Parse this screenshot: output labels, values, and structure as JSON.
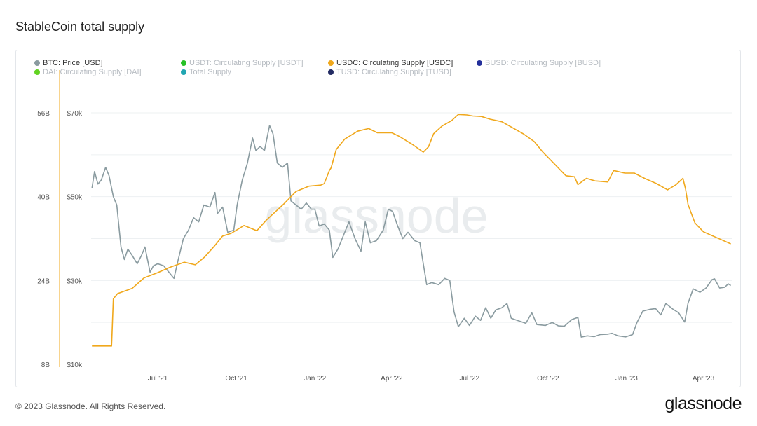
{
  "header": {
    "title": "StableCoin total supply"
  },
  "legend": [
    {
      "label": "BTC: Price [USD]",
      "color": "#8a9ba0",
      "active": true
    },
    {
      "label": "USDT: Circulating Supply [USDT]",
      "color": "#26c126",
      "active": false
    },
    {
      "label": "USDC: Circulating Supply [USDC]",
      "color": "#f0a81c",
      "active": true
    },
    {
      "label": "BUSD: Circulating Supply [BUSD]",
      "color": "#232f9a",
      "active": false
    },
    {
      "label": "DAI: Circulating Supply [DAI]",
      "color": "#62d321",
      "active": false
    },
    {
      "label": "Total Supply",
      "color": "#21a6b2",
      "active": false
    },
    {
      "label": "TUSD: Circulating Supply [TUSD]",
      "color": "#232b63",
      "active": false
    }
  ],
  "watermark": "glassnode",
  "footer": {
    "copyright": "© 2023 Glassnode. All Rights Reserved.",
    "brand": "glassnode"
  },
  "chart_data": {
    "type": "line",
    "title": "StableCoin total supply",
    "x_ticks": [
      "Jul '21",
      "Oct '21",
      "Jan '22",
      "Apr '22",
      "Jul '22",
      "Oct '22",
      "Jan '23",
      "Apr '23"
    ],
    "left_axis": {
      "label": "",
      "ticks": [
        "8B",
        "24B",
        "40B",
        "56B"
      ],
      "range_billion": [
        8,
        64
      ]
    },
    "right_axis": {
      "label": "",
      "ticks": [
        "$10k",
        "$30k",
        "$50k",
        "$70k"
      ],
      "range_usd": [
        10000,
        79000
      ]
    },
    "grid": true,
    "legend_position": "top",
    "series": [
      {
        "name": "BTC: Price [USD]",
        "axis": "right",
        "color": "#8a9ba0",
        "points": [
          [
            "2021-04-15",
            52000
          ],
          [
            "2021-04-18",
            56000
          ],
          [
            "2021-04-22",
            53000
          ],
          [
            "2021-04-26",
            54000
          ],
          [
            "2021-05-01",
            57000
          ],
          [
            "2021-05-05",
            55000
          ],
          [
            "2021-05-10",
            50000
          ],
          [
            "2021-05-14",
            48000
          ],
          [
            "2021-05-19",
            38000
          ],
          [
            "2021-05-23",
            35000
          ],
          [
            "2021-05-27",
            37500
          ],
          [
            "2021-06-01",
            36000
          ],
          [
            "2021-06-07",
            34000
          ],
          [
            "2021-06-12",
            36000
          ],
          [
            "2021-06-16",
            38000
          ],
          [
            "2021-06-22",
            32000
          ],
          [
            "2021-06-26",
            33500
          ],
          [
            "2021-07-01",
            34000
          ],
          [
            "2021-07-08",
            33500
          ],
          [
            "2021-07-14",
            32000
          ],
          [
            "2021-07-20",
            30500
          ],
          [
            "2021-07-25",
            35000
          ],
          [
            "2021-07-31",
            40000
          ],
          [
            "2021-08-06",
            42000
          ],
          [
            "2021-08-12",
            45000
          ],
          [
            "2021-08-18",
            44000
          ],
          [
            "2021-08-24",
            48000
          ],
          [
            "2021-08-31",
            47500
          ],
          [
            "2021-09-06",
            51000
          ],
          [
            "2021-09-09",
            46000
          ],
          [
            "2021-09-15",
            47500
          ],
          [
            "2021-09-21",
            41500
          ],
          [
            "2021-09-28",
            42000
          ],
          [
            "2021-10-02",
            48000
          ],
          [
            "2021-10-08",
            54000
          ],
          [
            "2021-10-14",
            58000
          ],
          [
            "2021-10-20",
            64000
          ],
          [
            "2021-10-24",
            61000
          ],
          [
            "2021-10-29",
            62000
          ],
          [
            "2021-11-03",
            61000
          ],
          [
            "2021-11-09",
            67000
          ],
          [
            "2021-11-13",
            65000
          ],
          [
            "2021-11-18",
            58000
          ],
          [
            "2021-11-24",
            57000
          ],
          [
            "2021-11-30",
            58000
          ],
          [
            "2021-12-04",
            49000
          ],
          [
            "2021-12-10",
            48000
          ],
          [
            "2021-12-16",
            47000
          ],
          [
            "2021-12-22",
            48500
          ],
          [
            "2021-12-28",
            47000
          ],
          [
            "2022-01-01",
            47000
          ],
          [
            "2022-01-06",
            43000
          ],
          [
            "2022-01-12",
            43500
          ],
          [
            "2022-01-18",
            42000
          ],
          [
            "2022-01-22",
            35500
          ],
          [
            "2022-01-28",
            37500
          ],
          [
            "2022-02-04",
            41000
          ],
          [
            "2022-02-10",
            44000
          ],
          [
            "2022-02-17",
            40000
          ],
          [
            "2022-02-24",
            37000
          ],
          [
            "2022-03-01",
            44000
          ],
          [
            "2022-03-07",
            39000
          ],
          [
            "2022-03-14",
            39500
          ],
          [
            "2022-03-22",
            42000
          ],
          [
            "2022-03-28",
            47000
          ],
          [
            "2022-04-02",
            46500
          ],
          [
            "2022-04-08",
            43000
          ],
          [
            "2022-04-14",
            40000
          ],
          [
            "2022-04-20",
            41500
          ],
          [
            "2022-04-28",
            39500
          ],
          [
            "2022-05-04",
            39000
          ],
          [
            "2022-05-08",
            34000
          ],
          [
            "2022-05-12",
            29000
          ],
          [
            "2022-05-18",
            29500
          ],
          [
            "2022-05-26",
            29000
          ],
          [
            "2022-06-02",
            30500
          ],
          [
            "2022-06-08",
            30000
          ],
          [
            "2022-06-13",
            22500
          ],
          [
            "2022-06-18",
            19000
          ],
          [
            "2022-06-25",
            21000
          ],
          [
            "2022-07-01",
            19300
          ],
          [
            "2022-07-08",
            21500
          ],
          [
            "2022-07-14",
            20500
          ],
          [
            "2022-07-20",
            23500
          ],
          [
            "2022-07-26",
            21000
          ],
          [
            "2022-08-01",
            23000
          ],
          [
            "2022-08-08",
            23500
          ],
          [
            "2022-08-14",
            24500
          ],
          [
            "2022-08-19",
            21000
          ],
          [
            "2022-08-26",
            20500
          ],
          [
            "2022-09-05",
            19800
          ],
          [
            "2022-09-12",
            22300
          ],
          [
            "2022-09-18",
            19500
          ],
          [
            "2022-09-28",
            19300
          ],
          [
            "2022-10-06",
            20000
          ],
          [
            "2022-10-13",
            19200
          ],
          [
            "2022-10-20",
            19100
          ],
          [
            "2022-10-29",
            20700
          ],
          [
            "2022-11-05",
            21200
          ],
          [
            "2022-11-09",
            16500
          ],
          [
            "2022-11-16",
            16800
          ],
          [
            "2022-11-24",
            16600
          ],
          [
            "2022-12-01",
            17100
          ],
          [
            "2022-12-10",
            17200
          ],
          [
            "2022-12-15",
            17400
          ],
          [
            "2022-12-22",
            16800
          ],
          [
            "2022-12-31",
            16550
          ],
          [
            "2023-01-08",
            17100
          ],
          [
            "2023-01-13",
            19900
          ],
          [
            "2023-01-20",
            22700
          ],
          [
            "2023-01-28",
            23100
          ],
          [
            "2023-02-04",
            23300
          ],
          [
            "2023-02-10",
            21800
          ],
          [
            "2023-02-16",
            24500
          ],
          [
            "2023-02-24",
            23200
          ],
          [
            "2023-03-03",
            22300
          ],
          [
            "2023-03-10",
            20100
          ],
          [
            "2023-03-14",
            24600
          ],
          [
            "2023-03-20",
            28000
          ],
          [
            "2023-03-28",
            27200
          ],
          [
            "2023-04-04",
            28200
          ],
          [
            "2023-04-11",
            30200
          ],
          [
            "2023-04-14",
            30400
          ],
          [
            "2023-04-20",
            28200
          ],
          [
            "2023-04-26",
            28400
          ],
          [
            "2023-04-30",
            29200
          ],
          [
            "2023-05-03",
            28800
          ]
        ]
      },
      {
        "name": "USDC: Circulating Supply [USDC]",
        "axis": "left",
        "color": "#f0a81c",
        "points": [
          [
            "2021-04-15",
            11.5
          ],
          [
            "2021-05-08",
            11.5
          ],
          [
            "2021-05-10",
            20.5
          ],
          [
            "2021-05-15",
            21.5
          ],
          [
            "2021-06-01",
            22.5
          ],
          [
            "2021-06-15",
            24.5
          ],
          [
            "2021-07-01",
            25.5
          ],
          [
            "2021-07-15",
            26.5
          ],
          [
            "2021-08-01",
            27.5
          ],
          [
            "2021-08-14",
            27.0
          ],
          [
            "2021-08-25",
            28.5
          ],
          [
            "2021-09-05",
            30.5
          ],
          [
            "2021-09-15",
            32.5
          ],
          [
            "2021-09-25",
            33.0
          ],
          [
            "2021-10-10",
            34.5
          ],
          [
            "2021-10-25",
            33.5
          ],
          [
            "2021-11-05",
            35.5
          ],
          [
            "2021-11-25",
            38.5
          ],
          [
            "2021-12-10",
            41.0
          ],
          [
            "2021-12-25",
            42.0
          ],
          [
            "2022-01-08",
            42.2
          ],
          [
            "2022-01-12",
            42.5
          ],
          [
            "2022-01-18",
            45.0
          ],
          [
            "2022-01-20",
            45.5
          ],
          [
            "2022-01-26",
            49.0
          ],
          [
            "2022-02-05",
            51.0
          ],
          [
            "2022-02-20",
            52.5
          ],
          [
            "2022-03-05",
            53.0
          ],
          [
            "2022-03-15",
            52.2
          ],
          [
            "2022-04-01",
            52.2
          ],
          [
            "2022-04-10",
            51.5
          ],
          [
            "2022-04-25",
            50.0
          ],
          [
            "2022-05-08",
            48.5
          ],
          [
            "2022-05-14",
            49.5
          ],
          [
            "2022-05-20",
            52.0
          ],
          [
            "2022-05-30",
            53.5
          ],
          [
            "2022-06-10",
            54.5
          ],
          [
            "2022-06-18",
            55.7
          ],
          [
            "2022-06-28",
            55.6
          ],
          [
            "2022-07-05",
            55.4
          ],
          [
            "2022-07-15",
            55.3
          ],
          [
            "2022-07-25",
            54.8
          ],
          [
            "2022-08-08",
            54.3
          ],
          [
            "2022-08-20",
            53.2
          ],
          [
            "2022-09-02",
            52.0
          ],
          [
            "2022-09-15",
            50.5
          ],
          [
            "2022-09-25",
            48.5
          ],
          [
            "2022-10-10",
            46.0
          ],
          [
            "2022-10-22",
            44.0
          ],
          [
            "2022-11-01",
            43.8
          ],
          [
            "2022-11-05",
            42.3
          ],
          [
            "2022-11-15",
            43.5
          ],
          [
            "2022-11-25",
            43.0
          ],
          [
            "2022-12-10",
            42.8
          ],
          [
            "2022-12-17",
            45.0
          ],
          [
            "2022-12-30",
            44.5
          ],
          [
            "2023-01-10",
            44.5
          ],
          [
            "2023-01-22",
            43.5
          ],
          [
            "2023-02-05",
            42.5
          ],
          [
            "2023-02-18",
            41.3
          ],
          [
            "2023-02-28",
            42.3
          ],
          [
            "2023-03-08",
            43.5
          ],
          [
            "2023-03-11",
            41.5
          ],
          [
            "2023-03-14",
            38.5
          ],
          [
            "2023-03-22",
            35.0
          ],
          [
            "2023-04-01",
            33.3
          ],
          [
            "2023-04-15",
            32.3
          ],
          [
            "2023-05-03",
            31.0
          ]
        ]
      }
    ]
  }
}
